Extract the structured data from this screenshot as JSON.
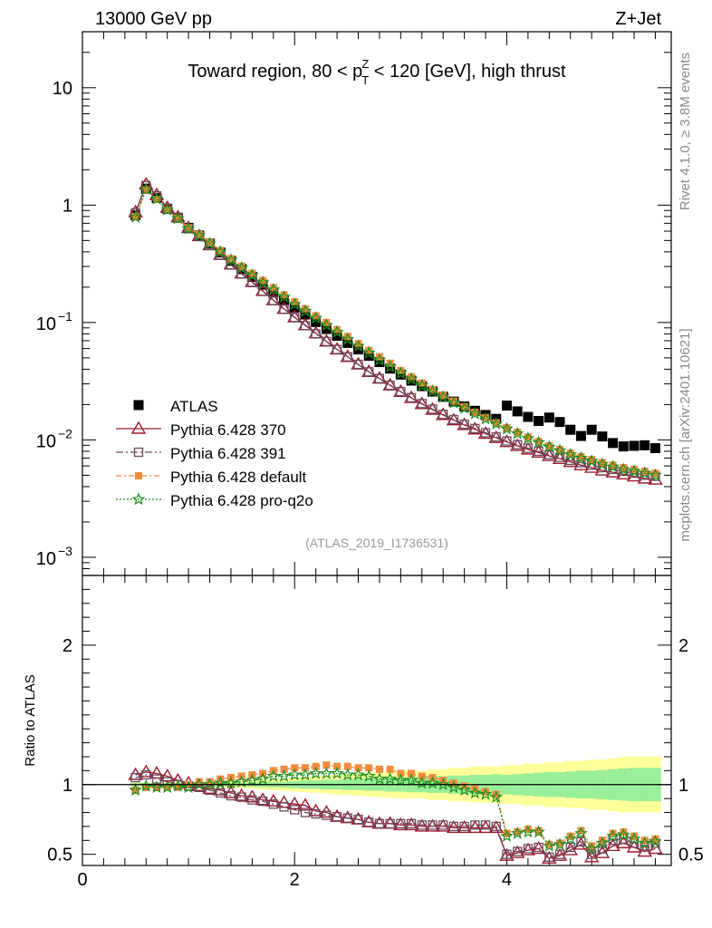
{
  "header": {
    "left_title": "13000 GeV pp",
    "right_title": "Z+Jet",
    "plot_title": {
      "pre": "Toward region, 80 < p",
      "sup": "Z",
      "sub": "T",
      "post": " < 120 [GeV], high thrust"
    },
    "side_label_top": "Rivet 4.1.0, ≥ 3.8M events",
    "side_label_bottom": "mcplots.cern.ch [arXiv:2401.10621]",
    "reference": "(ATLAS_2019_I1736531)"
  },
  "chart_data": [
    {
      "type": "scatter",
      "title": "Toward region, 80 < pT^Z < 120 [GeV], high thrust",
      "yscale": "log",
      "xlim": [
        0,
        5.55
      ],
      "ylim": [
        0.0007,
        30
      ],
      "yticks": [
        {
          "value": 10,
          "label": "10"
        },
        {
          "value": 1,
          "label": "1"
        },
        {
          "value": 0.1,
          "base": "10",
          "exp": "−1"
        },
        {
          "value": 0.01,
          "base": "10",
          "exp": "−2"
        },
        {
          "value": 0.001,
          "base": "10",
          "exp": "−3"
        }
      ],
      "legend_position": "lower-left",
      "x": [
        0.5,
        0.6,
        0.7,
        0.8,
        0.9,
        1.0,
        1.1,
        1.2,
        1.3,
        1.4,
        1.5,
        1.6,
        1.7,
        1.8,
        1.9,
        2.0,
        2.1,
        2.2,
        2.3,
        2.4,
        2.5,
        2.6,
        2.7,
        2.8,
        2.9,
        3.0,
        3.1,
        3.2,
        3.3,
        3.4,
        3.5,
        3.6,
        3.7,
        3.8,
        3.9,
        4.0,
        4.1,
        4.2,
        4.3,
        4.4,
        4.5,
        4.6,
        4.7,
        4.8,
        4.9,
        5.0,
        5.1,
        5.2,
        5.3,
        5.4
      ],
      "series": [
        {
          "name": "ATLAS",
          "values": [
            0.82,
            1.38,
            1.15,
            0.93,
            0.78,
            0.64,
            0.55,
            0.47,
            0.395,
            0.335,
            0.285,
            0.245,
            0.21,
            0.18,
            0.155,
            0.134,
            0.117,
            0.101,
            0.088,
            0.077,
            0.067,
            0.059,
            0.052,
            0.046,
            0.0405,
            0.036,
            0.032,
            0.0287,
            0.0258,
            0.0233,
            0.0212,
            0.0193,
            0.0177,
            0.0163,
            0.0151,
            0.0196,
            0.0175,
            0.0157,
            0.0145,
            0.0155,
            0.0142,
            0.0122,
            0.0108,
            0.0122,
            0.0107,
            0.0094,
            0.0088,
            0.0089,
            0.009,
            0.0085
          ]
        },
        {
          "name": "Pythia 6.428 370",
          "values": [
            0.87,
            1.5,
            1.22,
            0.95,
            0.79,
            0.64,
            0.545,
            0.457,
            0.378,
            0.313,
            0.262,
            0.222,
            0.186,
            0.155,
            0.131,
            0.111,
            0.095,
            0.081,
            0.069,
            0.059,
            0.051,
            0.044,
            0.038,
            0.0333,
            0.0292,
            0.0257,
            0.0228,
            0.0202,
            0.0181,
            0.0163,
            0.0147,
            0.0134,
            0.0123,
            0.0113,
            0.0104,
            0.0096,
            0.0089,
            0.0083,
            0.0078,
            0.0073,
            0.0069,
            0.0065,
            0.0061,
            0.0058,
            0.0055,
            0.0053,
            0.0051,
            0.0049,
            0.0047,
            0.0046
          ]
        },
        {
          "name": "Pythia 6.428 391",
          "values": [
            0.86,
            1.47,
            1.2,
            0.94,
            0.78,
            0.63,
            0.54,
            0.452,
            0.373,
            0.309,
            0.259,
            0.219,
            0.184,
            0.154,
            0.13,
            0.11,
            0.094,
            0.08,
            0.069,
            0.059,
            0.051,
            0.044,
            0.038,
            0.0333,
            0.0292,
            0.0258,
            0.0229,
            0.0204,
            0.0183,
            0.0165,
            0.0149,
            0.0136,
            0.0125,
            0.0115,
            0.0106,
            0.0098,
            0.0091,
            0.0085,
            0.008,
            0.0075,
            0.0071,
            0.0067,
            0.0064,
            0.0061,
            0.0058,
            0.0056,
            0.0054,
            0.0052,
            0.005,
            0.0049
          ]
        },
        {
          "name": "Pythia 6.428 default",
          "values": [
            0.8,
            1.35,
            1.12,
            0.91,
            0.77,
            0.64,
            0.56,
            0.48,
            0.41,
            0.35,
            0.302,
            0.262,
            0.228,
            0.198,
            0.172,
            0.15,
            0.131,
            0.114,
            0.1,
            0.087,
            0.076,
            0.066,
            0.058,
            0.051,
            0.045,
            0.039,
            0.0345,
            0.0305,
            0.027,
            0.024,
            0.0214,
            0.0192,
            0.0172,
            0.0155,
            0.014,
            0.0127,
            0.0116,
            0.0106,
            0.0097,
            0.0089,
            0.0083,
            0.0077,
            0.0072,
            0.0068,
            0.0064,
            0.0061,
            0.0058,
            0.0056,
            0.0054,
            0.0052
          ]
        },
        {
          "name": "Pythia 6.428 pro-q2o",
          "values": [
            0.79,
            1.36,
            1.13,
            0.91,
            0.77,
            0.63,
            0.55,
            0.47,
            0.4,
            0.34,
            0.292,
            0.253,
            0.219,
            0.19,
            0.165,
            0.143,
            0.125,
            0.109,
            0.095,
            0.083,
            0.072,
            0.063,
            0.055,
            0.048,
            0.042,
            0.037,
            0.033,
            0.029,
            0.026,
            0.0232,
            0.0207,
            0.0186,
            0.0167,
            0.0151,
            0.0137,
            0.0124,
            0.0113,
            0.0103,
            0.0095,
            0.0087,
            0.0081,
            0.0075,
            0.007,
            0.0066,
            0.0062,
            0.0059,
            0.0056,
            0.0054,
            0.0052,
            0.005
          ]
        }
      ]
    },
    {
      "type": "line",
      "ylabel": "Ratio to ATLAS",
      "xlim": [
        0,
        5.55
      ],
      "ylim": [
        0.42,
        2.5
      ],
      "yticks": [
        {
          "value": 2,
          "label": "2"
        },
        {
          "value": 1,
          "label": "1"
        },
        {
          "value": 0.5,
          "label": "0.5"
        }
      ],
      "xticks": [
        {
          "value": 0,
          "label": "0"
        },
        {
          "value": 2,
          "label": "2"
        },
        {
          "value": 4,
          "label": "4"
        }
      ],
      "x": [
        0.5,
        0.6,
        0.7,
        0.8,
        0.9,
        1.0,
        1.1,
        1.2,
        1.3,
        1.4,
        1.5,
        1.6,
        1.7,
        1.8,
        1.9,
        2.0,
        2.1,
        2.2,
        2.3,
        2.4,
        2.5,
        2.6,
        2.7,
        2.8,
        2.9,
        3.0,
        3.1,
        3.2,
        3.3,
        3.4,
        3.5,
        3.6,
        3.7,
        3.8,
        3.9,
        4.0,
        4.1,
        4.2,
        4.3,
        4.4,
        4.5,
        4.6,
        4.7,
        4.8,
        4.9,
        5.0,
        5.1,
        5.2,
        5.3,
        5.4
      ],
      "bands": {
        "stat_half_width": [
          0.01,
          0.01,
          0.01,
          0.01,
          0.01,
          0.01,
          0.01,
          0.01,
          0.01,
          0.01,
          0.012,
          0.015,
          0.018,
          0.02,
          0.02,
          0.025,
          0.03,
          0.03,
          0.035,
          0.035,
          0.04,
          0.04,
          0.045,
          0.045,
          0.05,
          0.05,
          0.055,
          0.055,
          0.06,
          0.06,
          0.065,
          0.065,
          0.07,
          0.07,
          0.075,
          0.07,
          0.075,
          0.08,
          0.085,
          0.09,
          0.09,
          0.095,
          0.1,
          0.1,
          0.105,
          0.11,
          0.115,
          0.12,
          0.12,
          0.12
        ],
        "total_half_width": [
          0.015,
          0.015,
          0.015,
          0.015,
          0.015,
          0.015,
          0.015,
          0.018,
          0.02,
          0.022,
          0.025,
          0.03,
          0.035,
          0.04,
          0.045,
          0.05,
          0.055,
          0.06,
          0.065,
          0.07,
          0.075,
          0.08,
          0.085,
          0.09,
          0.095,
          0.1,
          0.1,
          0.1,
          0.11,
          0.11,
          0.12,
          0.12,
          0.13,
          0.13,
          0.13,
          0.14,
          0.14,
          0.15,
          0.15,
          0.16,
          0.16,
          0.17,
          0.17,
          0.18,
          0.18,
          0.19,
          0.2,
          0.2,
          0.2,
          0.2
        ]
      },
      "series": [
        {
          "name": "Pythia 6.428 370",
          "values": [
            1.07,
            1.09,
            1.08,
            1.06,
            1.03,
            1.01,
            0.99,
            0.97,
            0.96,
            0.94,
            0.92,
            0.91,
            0.89,
            0.88,
            0.87,
            0.86,
            0.85,
            0.81,
            0.8,
            0.77,
            0.76,
            0.75,
            0.73,
            0.72,
            0.72,
            0.71,
            0.71,
            0.7,
            0.7,
            0.7,
            0.69,
            0.69,
            0.69,
            0.69,
            0.69,
            0.49,
            0.51,
            0.53,
            0.54,
            0.47,
            0.49,
            0.53,
            0.57,
            0.48,
            0.51,
            0.56,
            0.58,
            0.55,
            0.52,
            0.54
          ]
        },
        {
          "name": "Pythia 6.428 391",
          "values": [
            1.05,
            1.07,
            1.04,
            1.02,
            1.0,
            0.99,
            0.98,
            0.96,
            0.94,
            0.92,
            0.91,
            0.89,
            0.88,
            0.86,
            0.84,
            0.82,
            0.8,
            0.79,
            0.78,
            0.77,
            0.76,
            0.75,
            0.73,
            0.72,
            0.72,
            0.72,
            0.72,
            0.71,
            0.71,
            0.71,
            0.7,
            0.7,
            0.71,
            0.71,
            0.7,
            0.5,
            0.52,
            0.54,
            0.55,
            0.48,
            0.5,
            0.55,
            0.59,
            0.5,
            0.54,
            0.6,
            0.61,
            0.58,
            0.56,
            0.58
          ]
        },
        {
          "name": "Pythia 6.428 default",
          "values": [
            0.96,
            0.98,
            0.98,
            0.98,
            0.98,
            1.0,
            1.02,
            1.02,
            1.04,
            1.05,
            1.06,
            1.07,
            1.08,
            1.1,
            1.11,
            1.12,
            1.12,
            1.13,
            1.14,
            1.13,
            1.13,
            1.12,
            1.12,
            1.11,
            1.11,
            1.08,
            1.08,
            1.06,
            1.05,
            1.03,
            1.01,
            0.99,
            0.97,
            0.95,
            0.93,
            0.65,
            0.66,
            0.68,
            0.67,
            0.57,
            0.58,
            0.63,
            0.67,
            0.56,
            0.6,
            0.65,
            0.66,
            0.63,
            0.6,
            0.61
          ]
        },
        {
          "name": "Pythia 6.428 pro-q2o",
          "values": [
            0.96,
            0.99,
            0.98,
            0.98,
            0.99,
            0.98,
            1.0,
            1.0,
            1.01,
            1.01,
            1.02,
            1.03,
            1.04,
            1.06,
            1.06,
            1.07,
            1.07,
            1.08,
            1.08,
            1.08,
            1.07,
            1.07,
            1.06,
            1.04,
            1.04,
            1.03,
            1.03,
            1.01,
            1.01,
            1.0,
            0.98,
            0.96,
            0.94,
            0.93,
            0.91,
            0.63,
            0.65,
            0.66,
            0.66,
            0.56,
            0.57,
            0.61,
            0.65,
            0.54,
            0.58,
            0.63,
            0.64,
            0.61,
            0.58,
            0.59
          ]
        }
      ]
    }
  ],
  "colors": {
    "atlas": "#000000",
    "p370": "#9a1b2d",
    "p391": "#6b4a5e",
    "default": "#f38b3c",
    "proq2o": "#1f8f1f",
    "band_stat": "#99ee99",
    "band_total": "#ffff99"
  }
}
